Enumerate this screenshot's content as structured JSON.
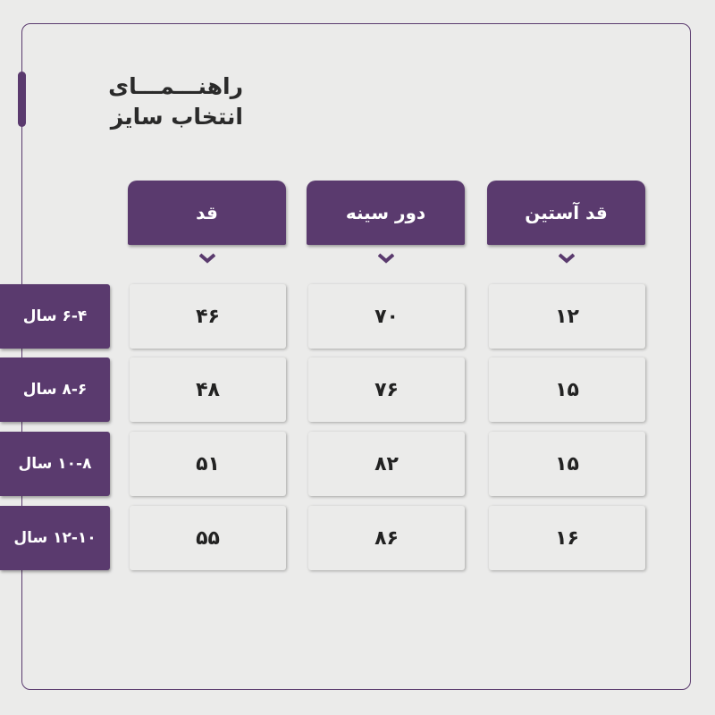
{
  "title": {
    "line1": "راهنـــمـــای",
    "line2": "انتخاب سایز"
  },
  "columns": [
    "قد",
    "دور سینه",
    "قد آستین"
  ],
  "rows": [
    {
      "label": "۶-۴ سال",
      "values": [
        "۴۶",
        "۷۰",
        "۱۲"
      ]
    },
    {
      "label": "۸-۶ سال",
      "values": [
        "۴۸",
        "۷۶",
        "۱۵"
      ]
    },
    {
      "label": "۱۰-۸ سال",
      "values": [
        "۵۱",
        "۸۲",
        "۱۵"
      ]
    },
    {
      "label": "۱۲-۱۰ سال",
      "values": [
        "۵۵",
        "۸۶",
        "۱۶"
      ]
    }
  ],
  "colors": {
    "accent": "#5a3a6e",
    "background": "#ebebea"
  }
}
